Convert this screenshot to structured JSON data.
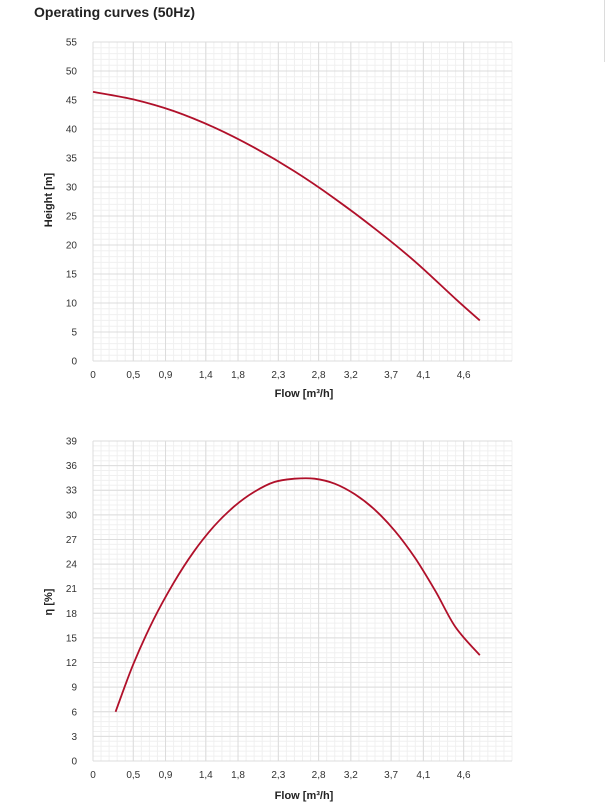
{
  "page": {
    "title": "Operating curves (50Hz)"
  },
  "chart_data": [
    {
      "type": "line",
      "xlabel": "Flow [m³/h]",
      "ylabel": "Height [m]",
      "xlim": [
        0,
        5.2
      ],
      "ylim": [
        0,
        55
      ],
      "x_ticks": [
        0,
        0.5,
        0.9,
        1.4,
        1.8,
        2.3,
        2.8,
        3.2,
        3.7,
        4.1,
        4.6
      ],
      "x_tick_labels": [
        "0",
        "0,5",
        "0,9",
        "1,4",
        "1,8",
        "2,3",
        "2,8",
        "3,2",
        "3,7",
        "4,1",
        "4,6"
      ],
      "y_ticks": [
        0,
        5,
        10,
        15,
        20,
        25,
        30,
        35,
        40,
        45,
        50,
        55
      ],
      "y_tick_labels": [
        "0",
        "5",
        "10",
        "15",
        "20",
        "25",
        "30",
        "35",
        "40",
        "45",
        "50",
        "55"
      ],
      "grid": true,
      "color": "#b0102a",
      "series": [
        {
          "x": [
            0,
            0.5,
            1.0,
            1.5,
            2.0,
            2.5,
            3.0,
            3.5,
            4.0,
            4.5,
            4.8
          ],
          "values": [
            46.4,
            45.1,
            43.1,
            40.3,
            36.8,
            32.7,
            28.0,
            22.8,
            17.1,
            10.7,
            7.0
          ]
        }
      ]
    },
    {
      "type": "line",
      "xlabel": "Flow [m³/h]",
      "ylabel": "η [%]",
      "xlim": [
        0,
        5.2
      ],
      "ylim": [
        0,
        39
      ],
      "x_ticks": [
        0,
        0.5,
        0.9,
        1.4,
        1.8,
        2.3,
        2.8,
        3.2,
        3.7,
        4.1,
        4.6
      ],
      "x_tick_labels": [
        "0",
        "0,5",
        "0,9",
        "1,4",
        "1,8",
        "2,3",
        "2,8",
        "3,2",
        "3,7",
        "4,1",
        "4,6"
      ],
      "y_ticks": [
        0,
        3,
        6,
        9,
        12,
        15,
        18,
        21,
        24,
        27,
        30,
        33,
        36,
        39
      ],
      "y_tick_labels": [
        "0",
        "3",
        "6",
        "9",
        "12",
        "15",
        "18",
        "21",
        "24",
        "27",
        "30",
        "33",
        "36",
        "39"
      ],
      "grid": true,
      "color": "#b0102a",
      "series": [
        {
          "x": [
            0.28,
            0.5,
            0.75,
            1.0,
            1.25,
            1.5,
            1.75,
            2.0,
            2.25,
            2.5,
            2.75,
            3.0,
            3.25,
            3.5,
            3.75,
            4.0,
            4.25,
            4.5,
            4.8
          ],
          "values": [
            6.0,
            11.8,
            17.2,
            21.7,
            25.5,
            28.6,
            31.0,
            32.8,
            34.0,
            34.4,
            34.4,
            33.8,
            32.5,
            30.6,
            28.0,
            24.7,
            20.7,
            16.3,
            12.9
          ]
        }
      ]
    }
  ]
}
